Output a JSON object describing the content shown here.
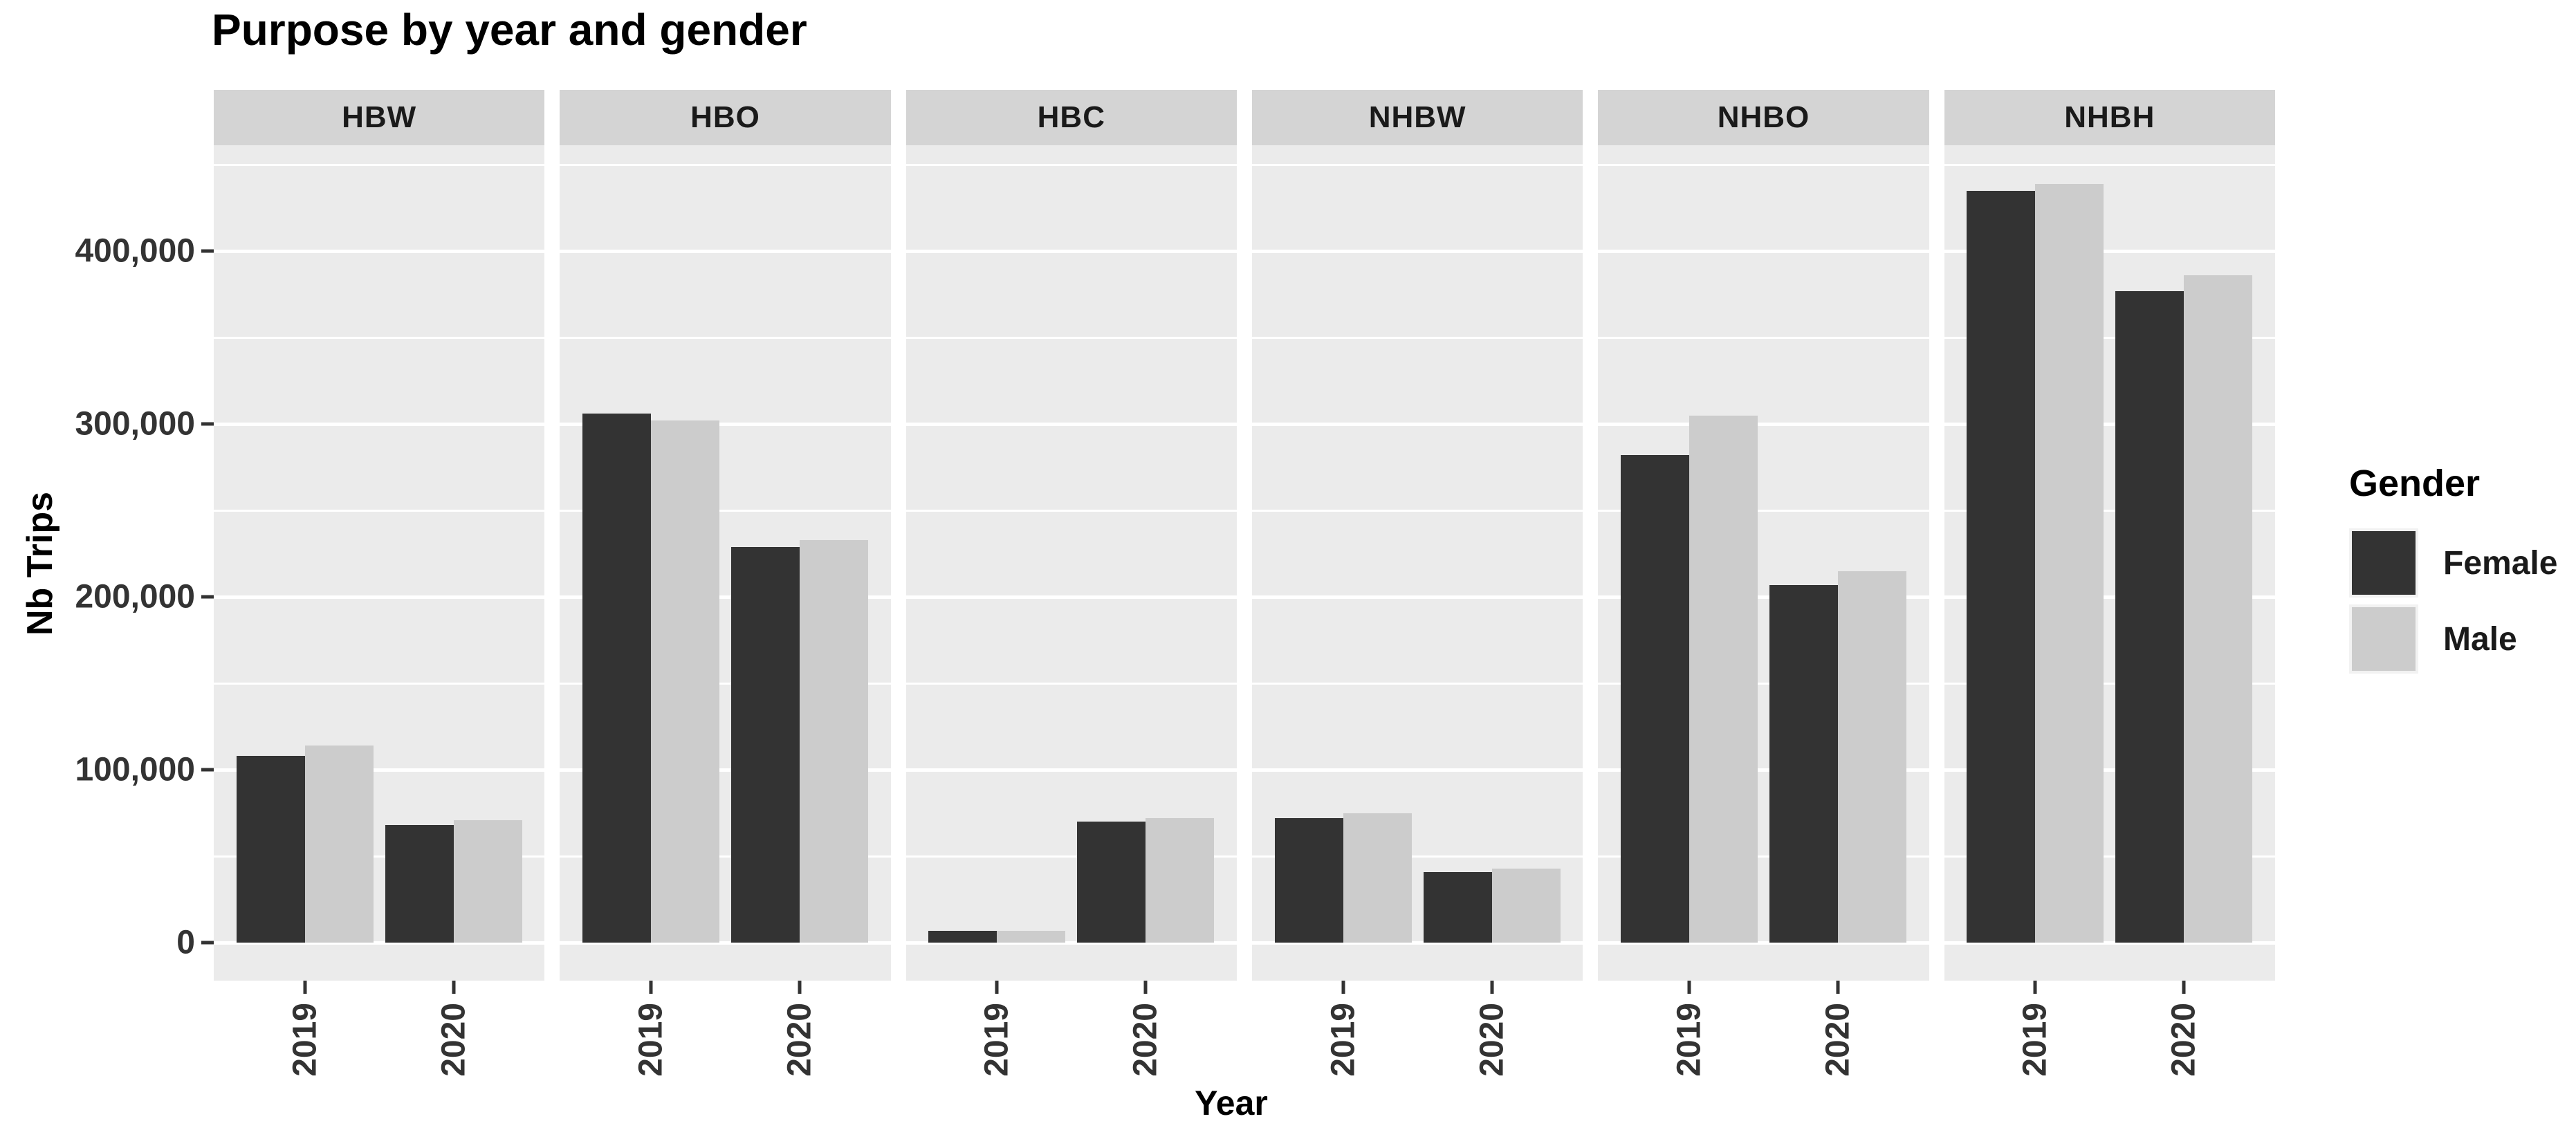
{
  "title": "Purpose by year and gender",
  "axes": {
    "x_label": "Year",
    "y_label": "Nb Trips"
  },
  "legend": {
    "title": "Gender",
    "entries": [
      {
        "label": "Female",
        "color": "#333333"
      },
      {
        "label": "Male",
        "color": "#cccccc"
      }
    ]
  },
  "colors": {
    "bar_female": "#333333",
    "bar_male": "#cccccc",
    "panel_background": "#ebebeb",
    "strip_background": "#d4d4d4",
    "gridline": "#ffffff",
    "axis_text": "#333333",
    "legend_key_background": "#f2f2f2"
  },
  "chart_data": {
    "type": "bar",
    "title": "Purpose by year and gender",
    "xlabel": "Year",
    "ylabel": "Nb Trips",
    "legend_title": "Gender",
    "legend_position": "right",
    "grid": true,
    "faceted": true,
    "facets": [
      "HBW",
      "HBO",
      "HBC",
      "NHBW",
      "NHBO",
      "NHBH"
    ],
    "categories": [
      "2019",
      "2020"
    ],
    "series_names": [
      "Female",
      "Male"
    ],
    "values": {
      "HBW": {
        "Female": [
          108000,
          68000
        ],
        "Male": [
          114000,
          71000
        ]
      },
      "HBO": {
        "Female": [
          306000,
          229000
        ],
        "Male": [
          302000,
          233000
        ]
      },
      "HBC": {
        "Female": [
          7000,
          70000
        ],
        "Male": [
          7000,
          72000
        ]
      },
      "NHBW": {
        "Female": [
          72000,
          41000
        ],
        "Male": [
          75000,
          43000
        ]
      },
      "NHBO": {
        "Female": [
          282000,
          207000
        ],
        "Male": [
          305000,
          215000
        ]
      },
      "NHBH": {
        "Female": [
          435000,
          377000
        ],
        "Male": [
          439000,
          386000
        ]
      }
    },
    "y_ticks": [
      0,
      100000,
      200000,
      300000,
      400000
    ],
    "y_tick_labels": [
      "0",
      "100,000",
      "200,000",
      "300,000",
      "400,000"
    ],
    "y_minor_ticks": [
      50000,
      150000,
      250000,
      350000,
      450000
    ],
    "ylim": [
      0,
      460000
    ]
  }
}
